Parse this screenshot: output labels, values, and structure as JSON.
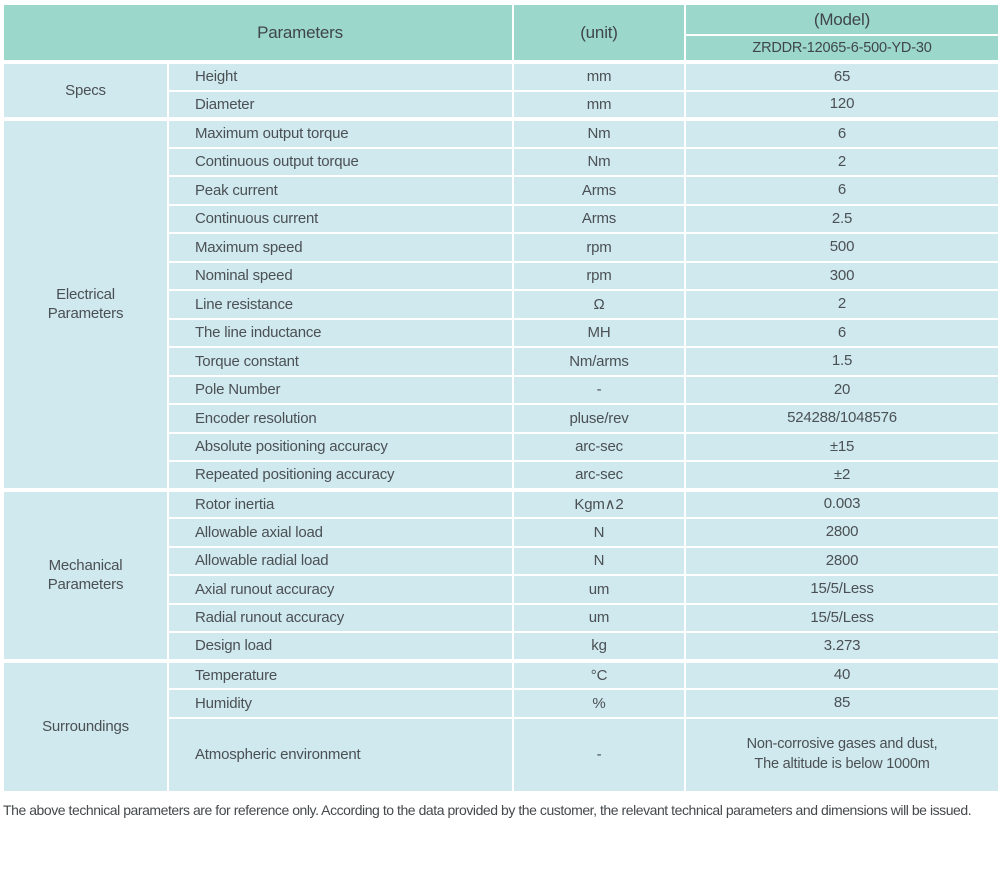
{
  "header": {
    "parameters_label": "Parameters",
    "unit_label": "(unit)",
    "model_label": "(Model)",
    "model_value": "ZRDDR-12065-6-500-YD-30"
  },
  "sections": [
    {
      "label": "Specs",
      "rows": [
        {
          "name": "Height",
          "unit": "mm",
          "value": "65"
        },
        {
          "name": "Diameter",
          "unit": "mm",
          "value": "120"
        }
      ]
    },
    {
      "label": "Electrical Parameters",
      "rows": [
        {
          "name": "Maximum output torque",
          "unit": "Nm",
          "value": "6"
        },
        {
          "name": "Continuous output torque",
          "unit": "Nm",
          "value": "2"
        },
        {
          "name": "Peak current",
          "unit": "Arms",
          "value": "6"
        },
        {
          "name": "Continuous current",
          "unit": "Arms",
          "value": "2.5"
        },
        {
          "name": "Maximum speed",
          "unit": "rpm",
          "value": "500"
        },
        {
          "name": "Nominal speed",
          "unit": "rpm",
          "value": "300"
        },
        {
          "name": "Line resistance",
          "unit": "Ω",
          "value": "2"
        },
        {
          "name": "The line inductance",
          "unit": "MH",
          "value": "6"
        },
        {
          "name": "Torque constant",
          "unit": "Nm/arms",
          "value": "1.5"
        },
        {
          "name": "Pole Number",
          "unit": "-",
          "value": "20"
        },
        {
          "name": "Encoder resolution",
          "unit": "pluse/rev",
          "value": "524288/1048576"
        },
        {
          "name": "Absolute positioning accuracy",
          "unit": "arc-sec",
          "value": "±15"
        },
        {
          "name": "Repeated positioning accuracy",
          "unit": "arc-sec",
          "value": "±2"
        }
      ]
    },
    {
      "label": "Mechanical Parameters",
      "rows": [
        {
          "name": "Rotor inertia",
          "unit": "Kgm∧2",
          "value": "0.003"
        },
        {
          "name": "Allowable axial load",
          "unit": "N",
          "value": "2800"
        },
        {
          "name": "Allowable radial load",
          "unit": "N",
          "value": "2800"
        },
        {
          "name": "Axial runout accuracy",
          "unit": "um",
          "value": "15/5/Less"
        },
        {
          "name": "Radial runout accuracy",
          "unit": "um",
          "value": "15/5/Less"
        },
        {
          "name": "Design load",
          "unit": "kg",
          "value": "3.273"
        }
      ]
    },
    {
      "label": "Surroundings",
      "rows": [
        {
          "name": "Temperature",
          "unit": "°C",
          "value": "40"
        },
        {
          "name": "Humidity",
          "unit": "%",
          "value": "85"
        },
        {
          "name": "Atmospheric environment",
          "unit": "-",
          "value": "Non-corrosive gases and dust,\nThe altitude is below 1000m",
          "tall": true
        }
      ]
    }
  ],
  "footer": {
    "note": "The above technical parameters are for reference only. According to the data provided by the customer, the relevant technical parameters and dimensions will be issued."
  },
  "colors": {
    "header_bg": "#9cd7cb",
    "body_bg": "#cfe9ee",
    "border": "#ffffff",
    "text": "#4b5054",
    "header_text": "#3f464a",
    "footer_text": "#44494c"
  }
}
